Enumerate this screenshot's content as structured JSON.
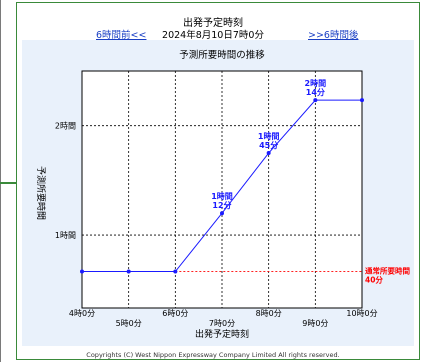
{
  "header": {
    "title": "出発予定時刻",
    "date": "2024年8月10日7時0分",
    "prev_link": "6時間前<<",
    "next_link": ">>6時間後"
  },
  "footer": {
    "copyright": "Copyrights (C) West Nippon Expressway Company Limited All rights reserved."
  },
  "chart_data": {
    "type": "line",
    "title": "予測所要時間の推移",
    "xlabel": "出発予定時刻",
    "ylabel": "予測所要時間",
    "x": [
      "4時0分",
      "5時0分",
      "6時0分",
      "7時0分",
      "8時0分",
      "9時0分",
      "10時0分"
    ],
    "x_values": [
      4,
      5,
      6,
      7,
      8,
      9,
      10
    ],
    "xlim": [
      4,
      10
    ],
    "y_ticks": [
      {
        "value": 60,
        "label": "1時間"
      },
      {
        "value": 120,
        "label": "2時間"
      }
    ],
    "ylim": [
      20,
      150
    ],
    "grid": true,
    "series": [
      {
        "color": "#1a1aff",
        "values": [
          40,
          40,
          40,
          72,
          105,
          134,
          134
        ],
        "labels": [
          "",
          "",
          "",
          "1時間\n12分",
          "1時間\n45分",
          "2時間\n14分",
          ""
        ]
      }
    ],
    "reference_line": {
      "value": 40,
      "label": "通常所要時間\n40分",
      "color": "#ff0000"
    }
  }
}
